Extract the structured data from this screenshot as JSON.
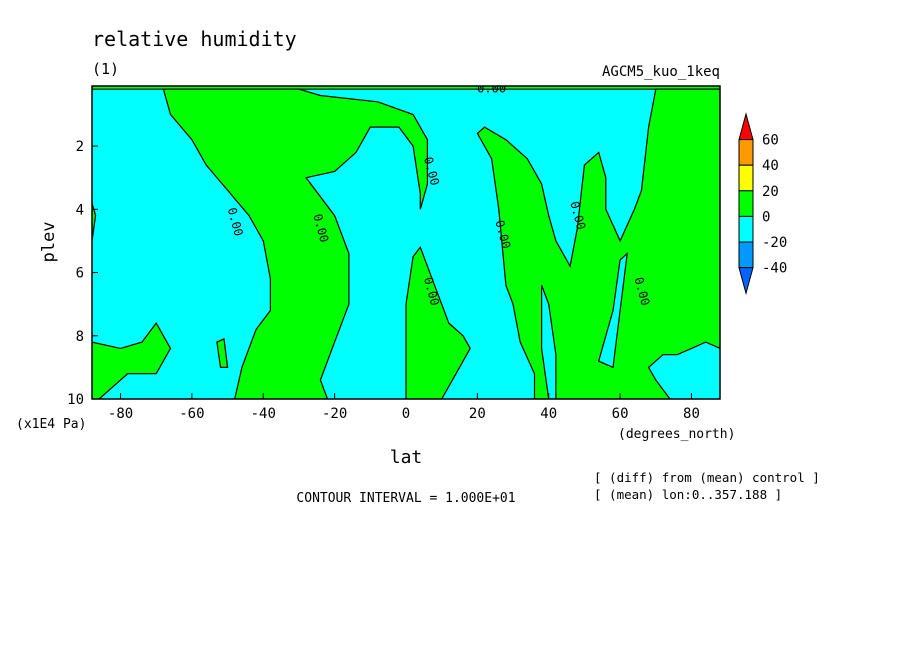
{
  "chart_data": {
    "type": "heatmap",
    "title": "relative humidity",
    "subtitle": "(1)",
    "experiment": "AGCM5_kuo_1keq",
    "xlabel": "lat",
    "ylabel": "plev",
    "xunit": "(degrees_north)",
    "yunit": "(x1E4 Pa)",
    "xlim": [
      -88,
      88
    ],
    "ylim": [
      10,
      0.1
    ],
    "xticks": [
      -80,
      -60,
      -40,
      -20,
      0,
      20,
      40,
      60,
      80
    ],
    "yticks": [
      2,
      4,
      6,
      8,
      10
    ],
    "contour_label": "0.00",
    "contour_interval_text": "CONTOUR INTERVAL = 1.000E+01",
    "notes": [
      "[ (diff) from (mean) control ]",
      "[ (mean) lon:0..357.188 ]"
    ],
    "colorbar": {
      "levels": [
        60,
        40,
        20,
        0,
        -20,
        -40
      ],
      "colors": [
        "#ff0000",
        "#ff9900",
        "#ffff00",
        "#00ff00",
        "#00ffff",
        "#0099ff",
        "#0066ff"
      ]
    },
    "regions": {
      "positive_color": "#00ff00",
      "negative_color": "#00ffff",
      "positive_polygons": [
        [
          [
            -88,
            0.1
          ],
          [
            88,
            0.1
          ],
          [
            88,
            0.2
          ],
          [
            -88,
            0.2
          ]
        ],
        [
          [
            -68,
            0.2
          ],
          [
            -66,
            1
          ],
          [
            -60,
            1.8
          ],
          [
            -56,
            2.6
          ],
          [
            -50,
            3.4
          ],
          [
            -44,
            4.2
          ],
          [
            -40,
            5
          ],
          [
            -38,
            6.2
          ],
          [
            -38,
            7.2
          ],
          [
            -42,
            7.8
          ],
          [
            -46,
            9
          ],
          [
            -48,
            10
          ],
          [
            -22,
            10
          ],
          [
            -24,
            9.4
          ],
          [
            -20,
            8.2
          ],
          [
            -16,
            7
          ],
          [
            -16,
            5.4
          ],
          [
            -20,
            4.2
          ],
          [
            -28,
            3
          ],
          [
            -20,
            2.8
          ],
          [
            -14,
            2.2
          ],
          [
            -10,
            1.4
          ],
          [
            -2,
            1.4
          ],
          [
            2,
            2
          ],
          [
            4,
            3.5
          ],
          [
            4,
            4
          ],
          [
            6,
            3.2
          ],
          [
            6,
            1.8
          ],
          [
            2,
            1
          ],
          [
            -8,
            0.6
          ],
          [
            -24,
            0.4
          ],
          [
            -30,
            0.2
          ]
        ],
        [
          [
            -88,
            8.2
          ],
          [
            -80,
            8.4
          ],
          [
            -74,
            8.2
          ],
          [
            -70,
            7.6
          ],
          [
            -66,
            8.4
          ],
          [
            -70,
            9.2
          ],
          [
            -78,
            9.2
          ],
          [
            -86,
            10
          ],
          [
            -88,
            10
          ]
        ],
        [
          [
            -53,
            8.2
          ],
          [
            -51,
            8.1
          ],
          [
            -50,
            9.0
          ],
          [
            -52,
            9.0
          ]
        ],
        [
          [
            -88,
            3.8
          ],
          [
            -87,
            4.2
          ],
          [
            -88,
            5.0
          ]
        ],
        [
          [
            0,
            10
          ],
          [
            0,
            7
          ],
          [
            2,
            5.5
          ],
          [
            4,
            5.2
          ],
          [
            8,
            6.4
          ],
          [
            10,
            7
          ],
          [
            12,
            7.6
          ],
          [
            16,
            8.0
          ],
          [
            18,
            8.4
          ],
          [
            14,
            9.2
          ],
          [
            10,
            10
          ]
        ],
        [
          [
            22,
            1.4
          ],
          [
            28,
            1.8
          ],
          [
            34,
            2.4
          ],
          [
            38,
            3.2
          ],
          [
            40,
            4.2
          ],
          [
            42,
            5
          ],
          [
            46,
            5.8
          ],
          [
            48,
            4.6
          ],
          [
            50,
            2.6
          ],
          [
            54,
            2.2
          ],
          [
            56,
            3.0
          ],
          [
            56,
            4.0
          ],
          [
            58,
            4.5
          ],
          [
            60,
            5
          ],
          [
            64,
            4.0
          ],
          [
            66,
            3.4
          ],
          [
            68,
            1.4
          ],
          [
            70,
            0.2
          ],
          [
            88,
            0.2
          ],
          [
            88,
            8.4
          ],
          [
            84,
            8.2
          ],
          [
            80,
            8.4
          ],
          [
            76,
            8.6
          ],
          [
            72,
            8.6
          ],
          [
            68,
            9.0
          ],
          [
            70,
            9.4
          ],
          [
            74,
            10
          ],
          [
            36,
            10
          ],
          [
            36,
            9.2
          ],
          [
            32,
            8.2
          ],
          [
            30,
            7
          ],
          [
            28,
            6.4
          ],
          [
            26,
            4
          ],
          [
            24,
            2.4
          ],
          [
            20,
            1.6
          ]
        ]
      ],
      "negative_holes_in_positive": [
        [
          [
            38,
            6.4
          ],
          [
            40,
            7.0
          ],
          [
            42,
            8.6
          ],
          [
            42,
            10
          ],
          [
            40,
            10
          ],
          [
            38,
            8.4
          ]
        ],
        [
          [
            54,
            8.8
          ],
          [
            58,
            7.2
          ],
          [
            60,
            5.6
          ],
          [
            62,
            5.4
          ],
          [
            58,
            9.0
          ]
        ]
      ],
      "contour_label_positions": [
        [
          24,
          0.2
        ],
        [
          -48,
          4.4
        ],
        [
          -24,
          4.6
        ],
        [
          7,
          2.8
        ],
        [
          27,
          4.8
        ],
        [
          7,
          6.6
        ],
        [
          48,
          4.2
        ],
        [
          66,
          6.6
        ]
      ]
    }
  }
}
